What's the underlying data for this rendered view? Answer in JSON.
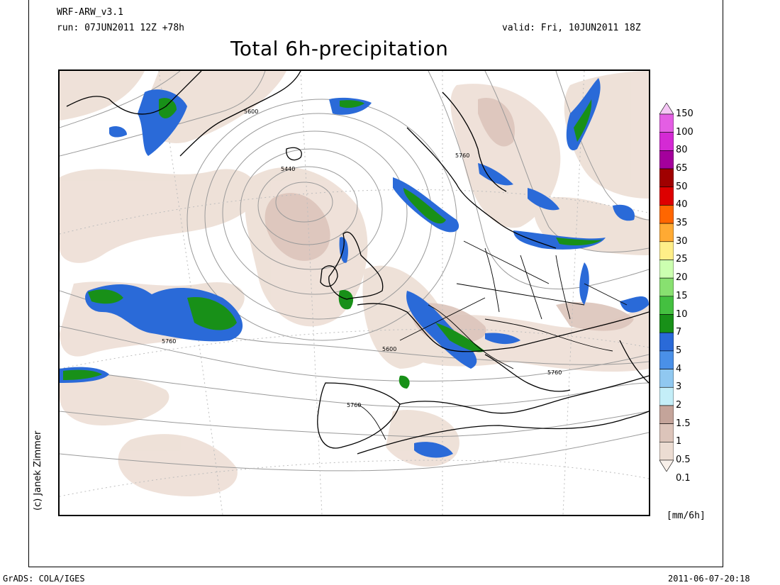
{
  "header": {
    "model": "WRF-ARW_v3.1",
    "run": "run: 07JUN2011 12Z +78h",
    "valid": "valid: Fri, 10JUN2011 18Z",
    "title": "Total 6h-precipitation"
  },
  "credit": "(c) Janek Zimmer",
  "footer": {
    "left": "GrADS: COLA/IGES",
    "right": "2011-06-07-20:18"
  },
  "legend": {
    "units": "[mm/6h]",
    "levels": [
      "150",
      "100",
      "80",
      "65",
      "50",
      "40",
      "35",
      "30",
      "25",
      "20",
      "15",
      "10",
      "7",
      "5",
      "4",
      "3",
      "2",
      "1.5",
      "1",
      "0.5",
      "0.1"
    ],
    "colors": [
      "#f5c6f5",
      "#e45ee4",
      "#d42ad4",
      "#a4009c",
      "#a00000",
      "#dd0000",
      "#ff6600",
      "#ffaa33",
      "#ffee88",
      "#ccffb0",
      "#88e070",
      "#44c040",
      "#189018",
      "#2a6ad8",
      "#4a90e8",
      "#90c8f0",
      "#c4eef8",
      "#c4a49a",
      "#dcc4ba",
      "#ecdcd2",
      "#f8f0ea"
    ]
  },
  "contour_labels": [
    "5600",
    "5440",
    "5760",
    "5760",
    "5600",
    "5760",
    "5760"
  ],
  "colors": {
    "light_precip": "#ecdcd2",
    "mid_precip": "#dcc4ba",
    "blue": "#2a6ad8",
    "cyan": "#c4eef8",
    "green": "#189018",
    "light_green": "#88e070"
  }
}
